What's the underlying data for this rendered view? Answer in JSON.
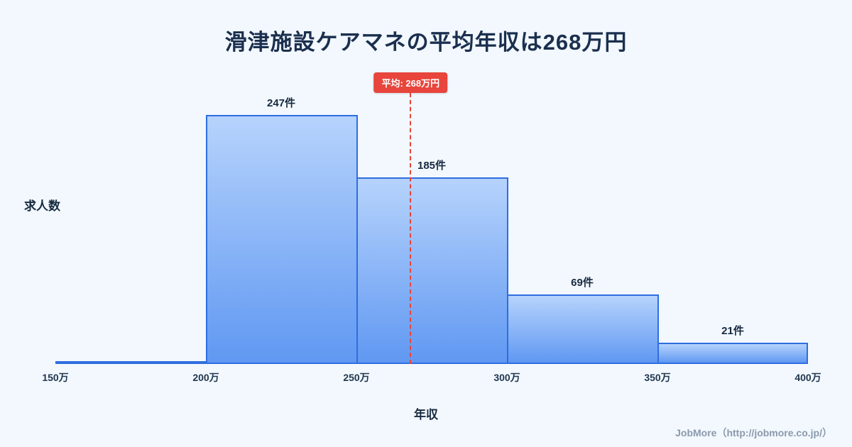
{
  "page": {
    "footer": "JobMore（http://jobmore.co.jp/）"
  },
  "chart_data": {
    "type": "bar",
    "title": "滑津施設ケアマネの平均年収は268万円",
    "xlabel": "年収",
    "ylabel": "求人数",
    "x_tick_labels": [
      "150万",
      "200万",
      "250万",
      "300万",
      "350万",
      "400万"
    ],
    "edges": [
      150,
      200,
      250,
      300,
      350,
      400
    ],
    "values": [
      1,
      247,
      185,
      69,
      21
    ],
    "bar_labels": [
      "",
      "247件",
      "185件",
      "69件",
      "21件"
    ],
    "average": {
      "value": 268,
      "label": "平均: 268万円"
    },
    "ylim": [
      0,
      270
    ],
    "grid": false,
    "legend": false,
    "colors": {
      "background": "#f2f8fe",
      "bar_gradient_top": "#b6d3fc",
      "bar_gradient_bottom": "#6098f2",
      "bar_border": "#2f6ee0",
      "average_line": "#e8453c",
      "title_text": "#1b2f4e",
      "tick_text": "#22374f",
      "footer_text": "#8b99ab"
    }
  }
}
